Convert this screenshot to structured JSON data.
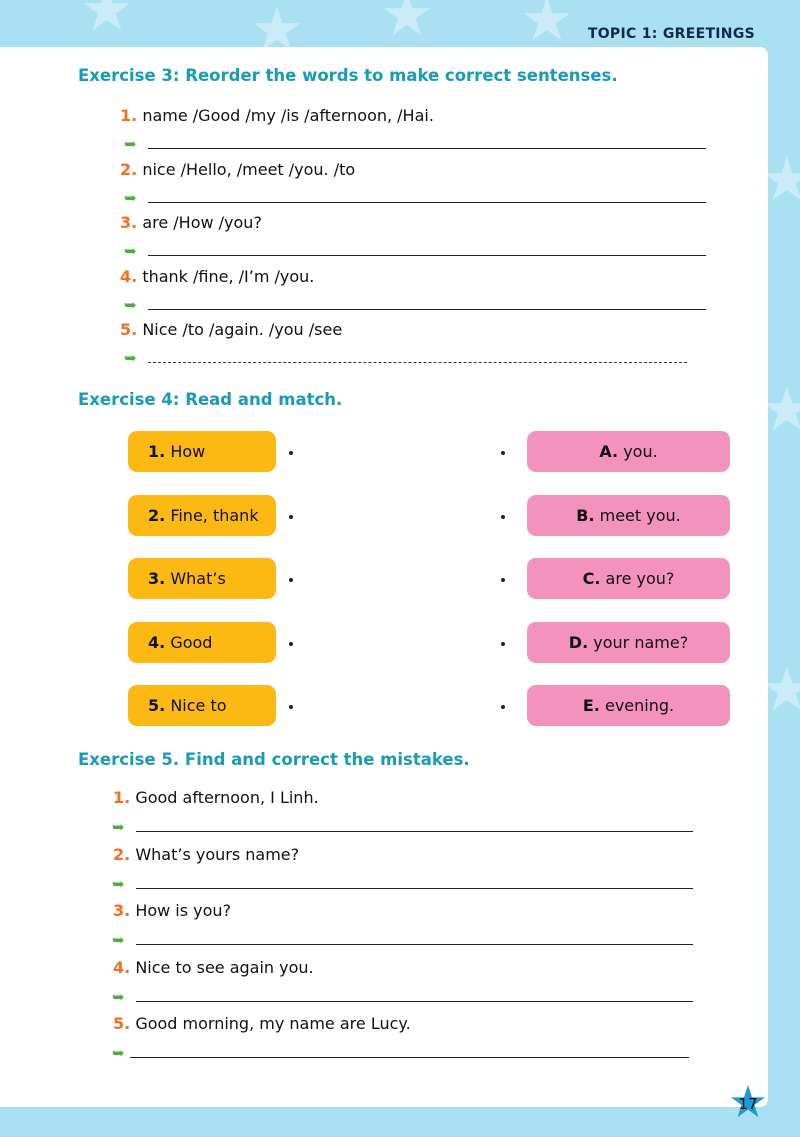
{
  "header": {
    "topic": "TOPIC 1: GREETINGS"
  },
  "ex3": {
    "title": "Exercise 3: Reorder the words to make correct sentenses.",
    "items": [
      {
        "n": "1.",
        "t": "name /Good /my /is /afternoon, /Hai."
      },
      {
        "n": "2.",
        "t": "nice /Hello, /meet /you. /to"
      },
      {
        "n": "3.",
        "t": "are /How /you?"
      },
      {
        "n": "4.",
        "t": "thank /fine, /I’m /you."
      },
      {
        "n": "5.",
        "t": "Nice /to /again. /you /see"
      }
    ]
  },
  "ex4": {
    "title": "Exercise 4: Read and match.",
    "left": [
      {
        "n": "1.",
        "t": "How"
      },
      {
        "n": "2.",
        "t": "Fine, thank"
      },
      {
        "n": "3.",
        "t": "What’s"
      },
      {
        "n": "4.",
        "t": "Good"
      },
      {
        "n": "5.",
        "t": "Nice to"
      }
    ],
    "right": [
      {
        "n": "A.",
        "t": "you."
      },
      {
        "n": "B.",
        "t": "meet you."
      },
      {
        "n": "C.",
        "t": "are you?"
      },
      {
        "n": "D.",
        "t": "your name?"
      },
      {
        "n": "E.",
        "t": "evening."
      }
    ]
  },
  "ex5": {
    "title": "Exercise 5. Find and correct the mistakes.",
    "items": [
      {
        "n": "1.",
        "t": "Good afternoon, I Linh."
      },
      {
        "n": "2.",
        "t": "What’s yours name?"
      },
      {
        "n": "3.",
        "t": "How is you?"
      },
      {
        "n": "4.",
        "t": "Nice to see again you."
      },
      {
        "n": "5.",
        "t": "Good morning, my name are Lucy."
      }
    ]
  },
  "page_number": "17",
  "colors": {
    "heading": "#1a9bb5",
    "number": "#f36f21",
    "left_box": "#fdb913",
    "right_box": "#f392bd",
    "background": "#a9e1f3"
  }
}
